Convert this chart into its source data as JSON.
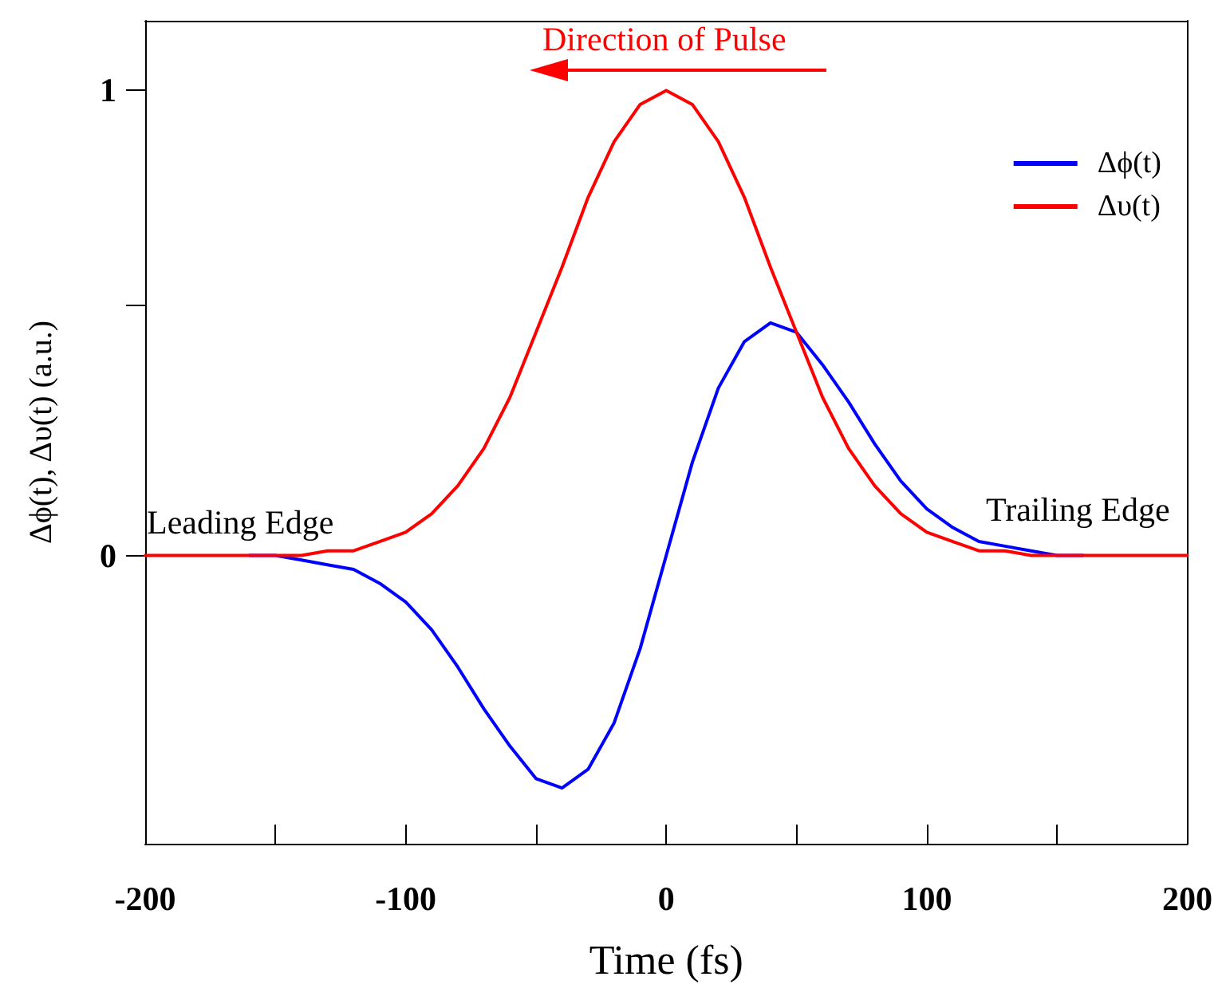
{
  "chart_data": {
    "type": "line",
    "xlabel": "Time (fs)",
    "ylabel": "Δϕ(t), Δυ(t) (a.u.)",
    "x": [
      -200,
      -190,
      -180,
      -170,
      -160,
      -150,
      -140,
      -130,
      -120,
      -110,
      -100,
      -90,
      -80,
      -70,
      -60,
      -50,
      -40,
      -30,
      -20,
      -10,
      0,
      10,
      20,
      30,
      40,
      50,
      60,
      70,
      80,
      90,
      100,
      110,
      120,
      130,
      140,
      150,
      160,
      170,
      180,
      190,
      200
    ],
    "series": [
      {
        "name": "Δϕ(t)",
        "color": "#0000ff",
        "values": [
          null,
          null,
          null,
          null,
          0,
          0,
          -0.01,
          -0.02,
          -0.03,
          -0.06,
          -0.1,
          -0.16,
          -0.24,
          -0.33,
          -0.41,
          -0.48,
          -0.5,
          -0.46,
          -0.36,
          -0.2,
          0,
          0.2,
          0.36,
          0.46,
          0.5,
          0.48,
          0.41,
          0.33,
          0.24,
          0.16,
          0.1,
          0.06,
          0.03,
          0.02,
          0.01,
          0,
          0,
          null,
          null,
          null,
          null
        ]
      },
      {
        "name": "Δυ(t)",
        "color": "#ff0000",
        "values": [
          0,
          0,
          0,
          0,
          0,
          0,
          0,
          0.01,
          0.01,
          0.03,
          0.05,
          0.09,
          0.15,
          0.23,
          0.34,
          0.48,
          0.62,
          0.77,
          0.89,
          0.97,
          1,
          0.97,
          0.89,
          0.77,
          0.62,
          0.48,
          0.34,
          0.23,
          0.15,
          0.09,
          0.05,
          0.03,
          0.01,
          0.01,
          0,
          0,
          0,
          0,
          0,
          0,
          0
        ]
      }
    ],
    "xlim": [
      -200,
      200
    ],
    "xticks": [
      -200,
      {
        "value": -150,
        "label": null
      },
      -100,
      {
        "value": -50,
        "label": null
      },
      0,
      {
        "value": 50,
        "label": null
      },
      100,
      {
        "value": 150,
        "label": null
      },
      200
    ],
    "ylim": [
      -0.62,
      1.15
    ],
    "yticks": [
      0,
      {
        "value": 0.54,
        "label": null
      },
      1
    ],
    "annotations": [
      "Direction of Pulse",
      "Leading Edge",
      "Trailing Edge"
    ],
    "legend": "top right",
    "grid": false,
    "marker": "none",
    "line_style": "solid"
  }
}
